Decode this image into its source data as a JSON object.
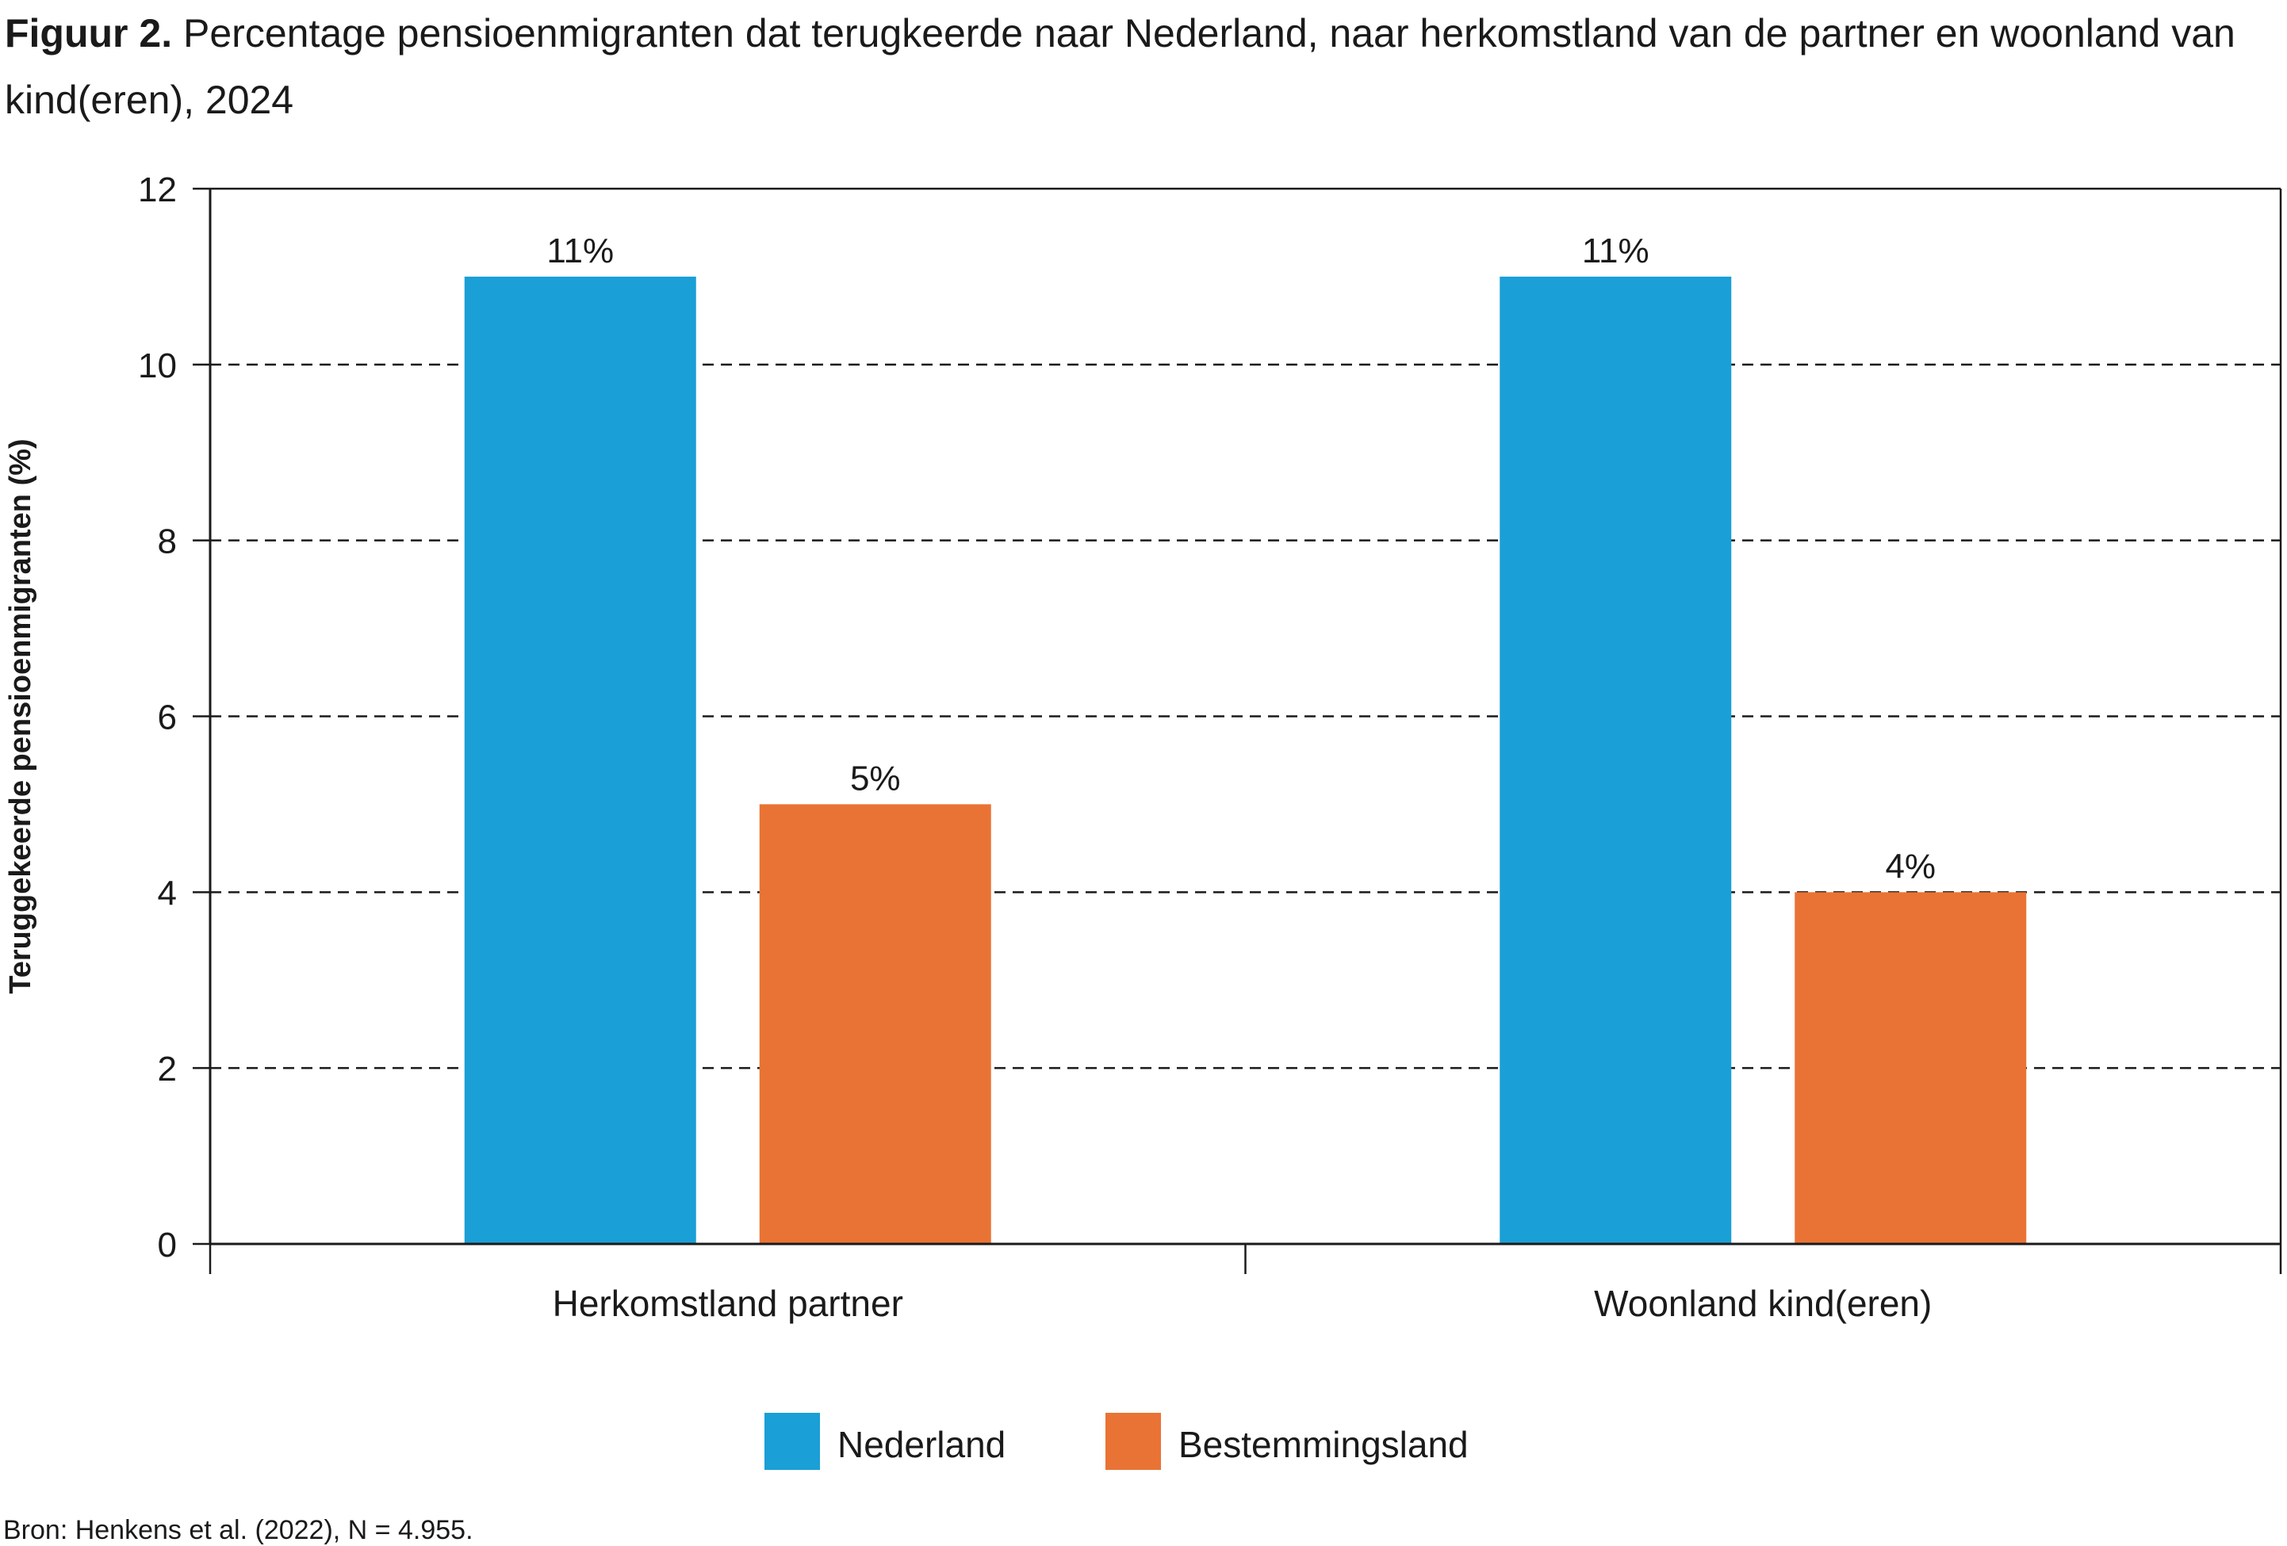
{
  "title": {
    "label": "Figuur 2.",
    "text": "Percentage pensioenmigranten dat terugkeerde naar Nederland, naar herkomstland van de partner en woonland van kind(eren), 2024"
  },
  "source": "Bron: Henkens et al. (2022), N = 4.955.",
  "chart_data": {
    "type": "bar",
    "categories": [
      "Herkomstland partner",
      "Woonland kind(eren)"
    ],
    "series": [
      {
        "name": "Nederland",
        "color": "#1a9fd6",
        "values": [
          11,
          11
        ],
        "labels": [
          "11%",
          "11%"
        ]
      },
      {
        "name": "Bestemmingsland",
        "color": "#e97334",
        "values": [
          5,
          4
        ],
        "labels": [
          "5%",
          "4%"
        ]
      }
    ],
    "xlabel": "",
    "ylabel": "Teruggekeerde pensioenmigranten (%)",
    "ylim": [
      0,
      12
    ],
    "yticks": [
      0,
      2,
      4,
      6,
      8,
      10,
      12
    ],
    "grid": "horizontal dashed",
    "legend": "bottom-center"
  }
}
